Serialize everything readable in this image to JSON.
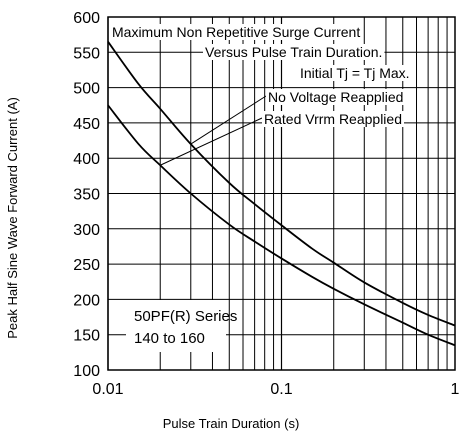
{
  "chart_data": {
    "type": "line",
    "title": "",
    "xlabel": "Pulse Train  Duration (s)",
    "ylabel": "Peak Half Sine Wave Forward Current (A)",
    "x_scale": "log",
    "xlim": [
      0.01,
      1
    ],
    "ylim": [
      100,
      600
    ],
    "x_ticks": [
      {
        "value": 0.01,
        "label": "0.01"
      },
      {
        "value": 0.1,
        "label": "0.1"
      },
      {
        "value": 1,
        "label": "1"
      }
    ],
    "y_ticks": [
      {
        "value": 100,
        "label": "100"
      },
      {
        "value": 150,
        "label": "150"
      },
      {
        "value": 200,
        "label": "200"
      },
      {
        "value": 250,
        "label": "250"
      },
      {
        "value": 300,
        "label": "300"
      },
      {
        "value": 350,
        "label": "350"
      },
      {
        "value": 400,
        "label": "400"
      },
      {
        "value": 450,
        "label": "450"
      },
      {
        "value": 500,
        "label": "500"
      },
      {
        "value": 550,
        "label": "550"
      },
      {
        "value": 600,
        "label": "600"
      }
    ],
    "grid": true,
    "series": [
      {
        "name": "No Voltage Reapplied",
        "x": [
          0.01,
          0.015,
          0.02,
          0.03,
          0.05,
          0.07,
          0.1,
          0.15,
          0.2,
          0.3,
          0.5,
          0.7,
          1.0
        ],
        "y": [
          565,
          505,
          470,
          420,
          365,
          335,
          305,
          272,
          252,
          224,
          195,
          178,
          163
        ]
      },
      {
        "name": "Rated Vrrm Reapplied",
        "x": [
          0.01,
          0.015,
          0.02,
          0.03,
          0.05,
          0.07,
          0.1,
          0.15,
          0.2,
          0.3,
          0.5,
          0.7,
          1.0
        ],
        "y": [
          475,
          420,
          390,
          350,
          306,
          282,
          258,
          232,
          215,
          193,
          167,
          150,
          135
        ]
      }
    ],
    "annotations": [
      "Maximum Non Repetitive Surge Current",
      "Versus Pulse Train Duration.",
      "Initial Tj = Tj Max.",
      "No Voltage Reapplied",
      "Rated Vrrm Reapplied"
    ],
    "series_box": {
      "line1": "50PF(R) Series",
      "line2": "140 to 160"
    }
  }
}
